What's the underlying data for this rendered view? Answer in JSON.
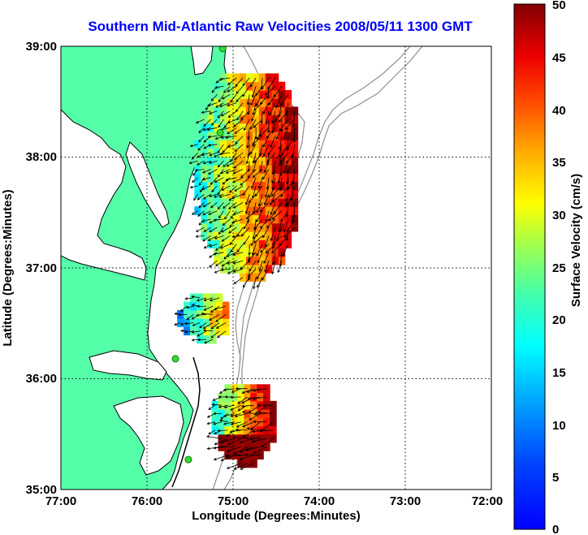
{
  "title": "Southern Mid-Atlantic Raw Velocities 2008/05/11 1300 GMT",
  "x_axis": {
    "label": "Longitude (Degrees:Minutes)",
    "ticks": [
      "77:00",
      "76:00",
      "75:00",
      "74:00",
      "73:00",
      "72:00"
    ]
  },
  "y_axis": {
    "label": "Latitude (Degrees:Minutes)",
    "ticks": [
      "39:00",
      "38:00",
      "37:00",
      "36:00",
      "35:00"
    ]
  },
  "colorbar": {
    "label": "Surface Velocity (cm/s)",
    "ticks": [
      "50",
      "45",
      "40",
      "35",
      "30",
      "25",
      "20",
      "15",
      "10",
      "5",
      "0"
    ],
    "range": [
      0,
      50
    ],
    "colormap": "jet"
  },
  "colors": {
    "title": "#0000ff",
    "land": "#55ffaa",
    "coastline": "#000000",
    "bathymetry": "#909090",
    "grid": "#000000",
    "radar_sites": "#33dd33"
  },
  "map": {
    "lon_range": [
      -77,
      -72
    ],
    "lat_range": [
      35,
      39
    ],
    "grid": "dotted",
    "radar_sites": [
      {
        "lon": -75.12,
        "lat": 38.98
      },
      {
        "lon": -75.15,
        "lat": 38.22
      },
      {
        "lon": -75.67,
        "lat": 36.18
      },
      {
        "lon": -75.52,
        "lat": 35.27
      }
    ]
  },
  "velocity_field": {
    "units": "cm/s",
    "regions": [
      {
        "lon": [
          -75.45,
          -74.25
        ],
        "lat": [
          36.88,
          38.75
        ],
        "speed_range": [
          10,
          50
        ]
      },
      {
        "lon": [
          -75.65,
          -75.05
        ],
        "lat": [
          36.32,
          36.73
        ],
        "speed_range": [
          5,
          40
        ]
      },
      {
        "lon": [
          -75.25,
          -74.55
        ],
        "lat": [
          35.2,
          35.95
        ],
        "speed_range": [
          10,
          50
        ]
      }
    ]
  }
}
